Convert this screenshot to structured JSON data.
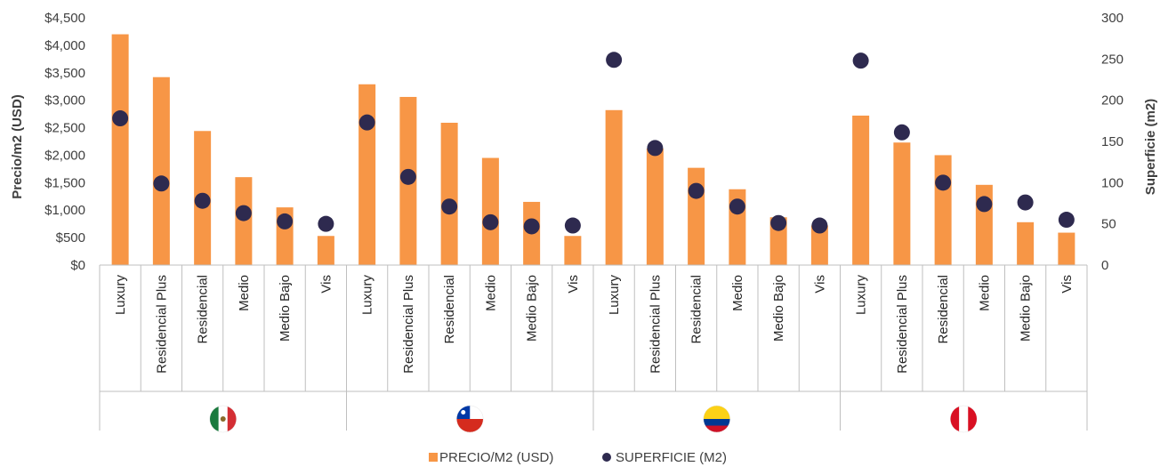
{
  "chart_data": {
    "type": "bar",
    "categories": [
      "Luxury",
      "Residencial Plus",
      "Residencial",
      "Medio",
      "Medio Bajo",
      "Vis",
      "Luxury",
      "Residencial Plus",
      "Residencial",
      "Medio",
      "Medio Bajo",
      "Vis",
      "Luxury",
      "Residencial Plus",
      "Residencial",
      "Medio",
      "Medio Bajo",
      "Vis",
      "Luxury",
      "Residencial Plus",
      "Residencial",
      "Medio",
      "Medio Bajo",
      "Vis"
    ],
    "groups": [
      {
        "flag": "mexico-flag-icon",
        "start": 0,
        "count": 6
      },
      {
        "flag": "chile-flag-icon",
        "start": 6,
        "count": 6
      },
      {
        "flag": "colombia-flag-icon",
        "start": 12,
        "count": 6
      },
      {
        "flag": "peru-flag-icon",
        "start": 18,
        "count": 6
      }
    ],
    "series": [
      {
        "name": "PRECIO/M2 (USD)",
        "type": "bar",
        "axis": "left",
        "color": "#F79646",
        "values": [
          4200,
          3420,
          2440,
          1600,
          1050,
          530,
          3290,
          3060,
          2590,
          1950,
          1150,
          530,
          2820,
          2120,
          1770,
          1380,
          870,
          720,
          2720,
          2230,
          2000,
          1460,
          780,
          590
        ]
      },
      {
        "name": "SUPERFICIE (M2)",
        "type": "scatter",
        "axis": "right",
        "color": "#2E2A4F",
        "values": [
          178,
          99,
          78,
          63,
          53,
          50,
          173,
          107,
          71,
          52,
          47,
          48,
          249,
          142,
          90,
          71,
          51,
          48,
          248,
          161,
          100,
          74,
          76,
          55
        ]
      }
    ],
    "ylabel": "Precio/m2 (USD)",
    "y2label": "Superficie (m2)",
    "ylim": [
      0,
      4500
    ],
    "y2lim": [
      0,
      300
    ],
    "yticks": [
      "$0",
      "$500",
      "$1,000",
      "$1,500",
      "$2,000",
      "$2,500",
      "$3,000",
      "$3,500",
      "$4,000",
      "$4,500"
    ],
    "y2ticks": [
      "0",
      "50",
      "100",
      "150",
      "200",
      "250",
      "300"
    ],
    "legend_position": "bottom"
  },
  "colors": {
    "bar": "#F79646",
    "dot": "#2E2A4F",
    "axis": "#bfbfbf"
  }
}
